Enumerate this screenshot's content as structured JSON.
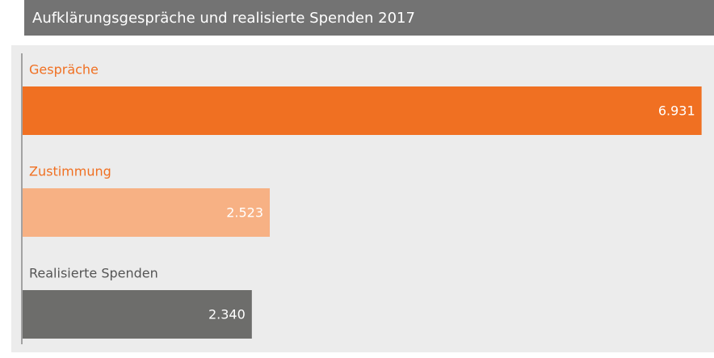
{
  "chart_data": {
    "type": "hbar",
    "title": "Aufklärungsgespräche und realisierte Spenden 2017",
    "categories": [
      "Gespräche",
      "Zustimmung",
      "Realisierte Spenden"
    ],
    "values": [
      6931,
      2523,
      2340
    ],
    "value_labels": [
      "6.931",
      "2.523",
      "2.340"
    ],
    "colors": [
      "#f07022",
      "#f7b184",
      "#6d6d6b"
    ],
    "label_colors": [
      "#f07022",
      "#f07022",
      "#555555"
    ],
    "xlim": [
      0,
      7000
    ]
  }
}
